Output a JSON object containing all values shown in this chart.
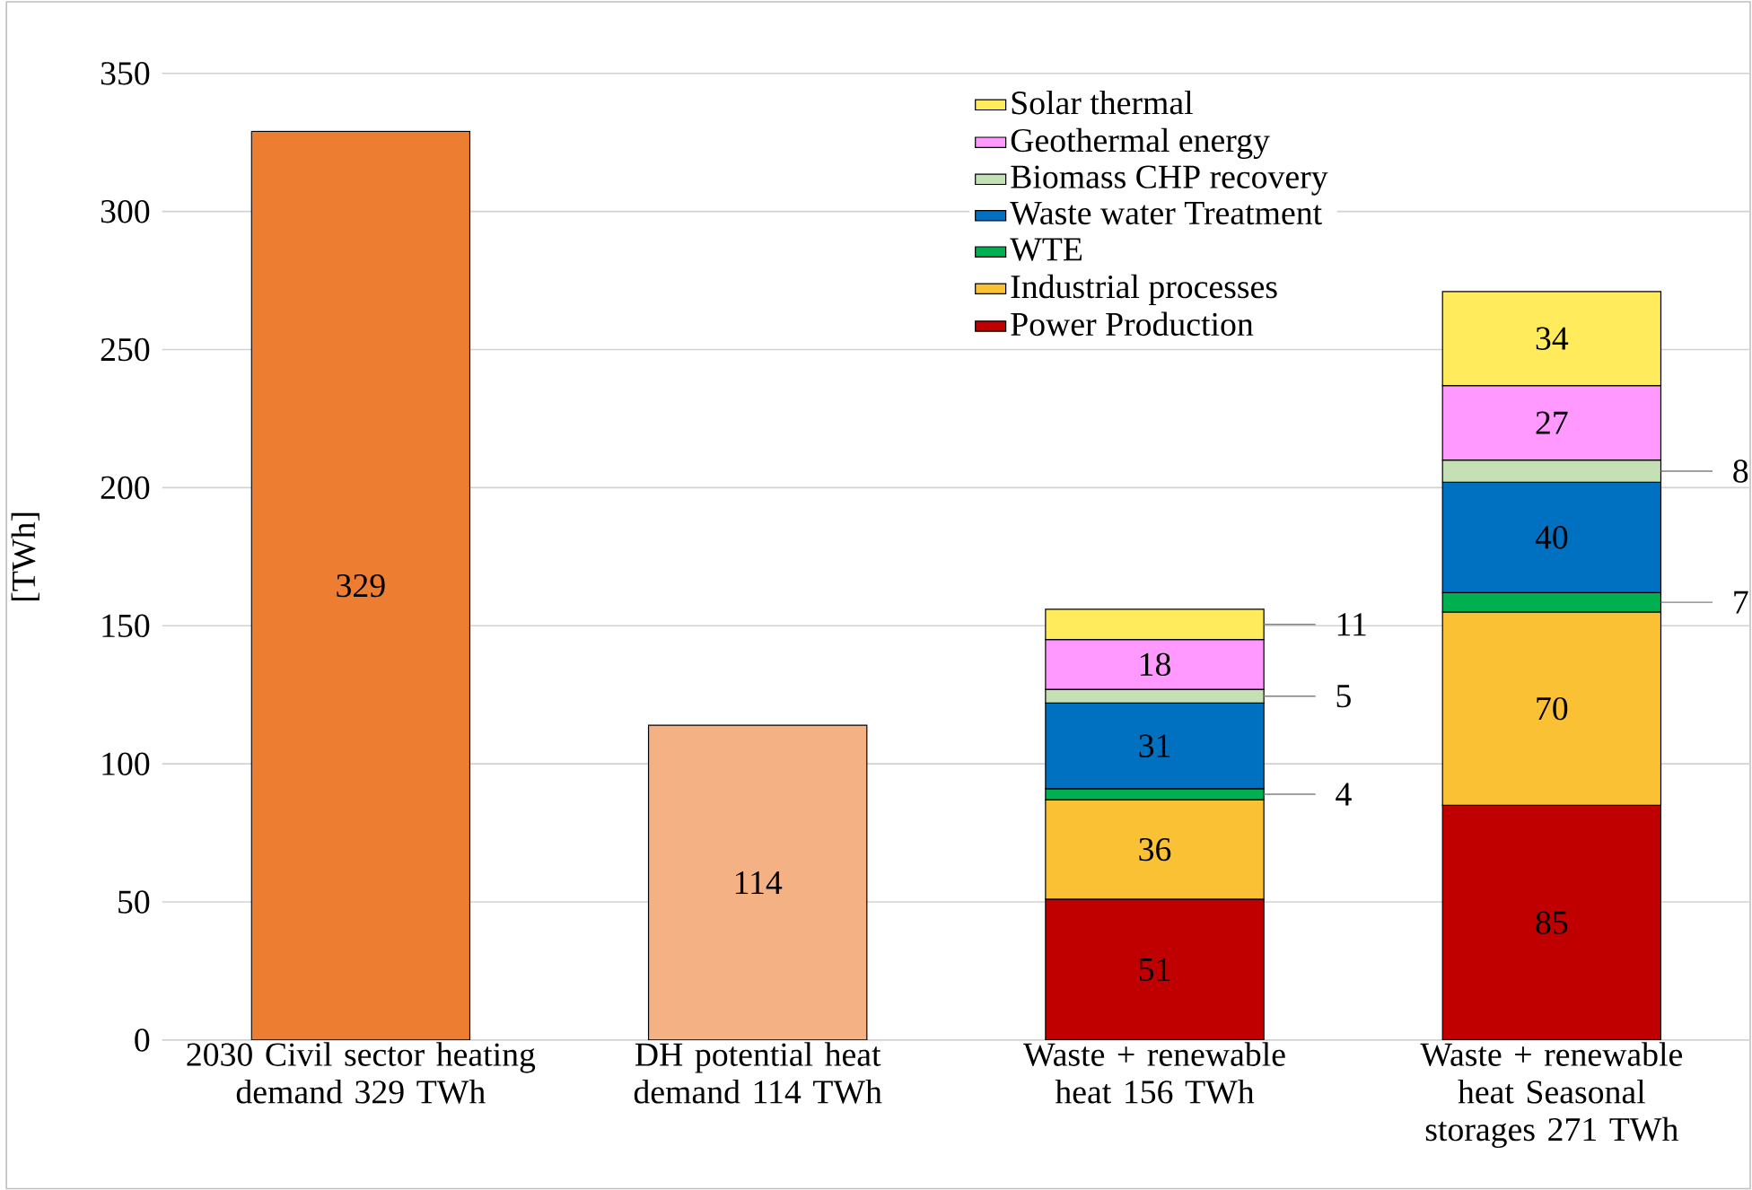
{
  "chart_data": {
    "type": "bar",
    "stacked": true,
    "ylabel": "[TWh]",
    "categories": [
      "2030 Civil sector heating demand 329 TWh",
      "DH potential heat demand 114 TWh",
      "Waste + renewable heat 156 TWh",
      "Waste + renewable heat Seasonal storages 271 TWh"
    ],
    "series": [
      {
        "colors": [
          "#ed7d31",
          "#f4b183",
          null,
          null
        ],
        "values": [
          329,
          114,
          null,
          null
        ]
      },
      {
        "name": "Power Production",
        "color": "#c00000",
        "values": [
          null,
          null,
          51,
          85
        ]
      },
      {
        "name": "Industrial processes",
        "color": "#fbc135",
        "values": [
          null,
          null,
          36,
          70
        ]
      },
      {
        "name": "WTE",
        "color": "#00b050",
        "values": [
          null,
          null,
          4,
          7
        ]
      },
      {
        "name": "Waste water Treatment",
        "color": "#0070c0",
        "values": [
          null,
          null,
          31,
          40
        ]
      },
      {
        "name": "Biomass CHP recovery",
        "color": "#c5e0b4",
        "values": [
          null,
          null,
          5,
          8
        ]
      },
      {
        "name": "Geothermal energy",
        "color": "#ff99ff",
        "values": [
          null,
          null,
          18,
          27
        ]
      },
      {
        "name": "Solar thermal",
        "color": "#ffeb5b",
        "values": [
          null,
          null,
          11,
          34
        ]
      }
    ],
    "ylim": [
      0,
      350
    ],
    "yticks": [
      0,
      50,
      100,
      150,
      200,
      250,
      300,
      350
    ],
    "grid": "y",
    "legend": "top right",
    "data_labels": true
  }
}
